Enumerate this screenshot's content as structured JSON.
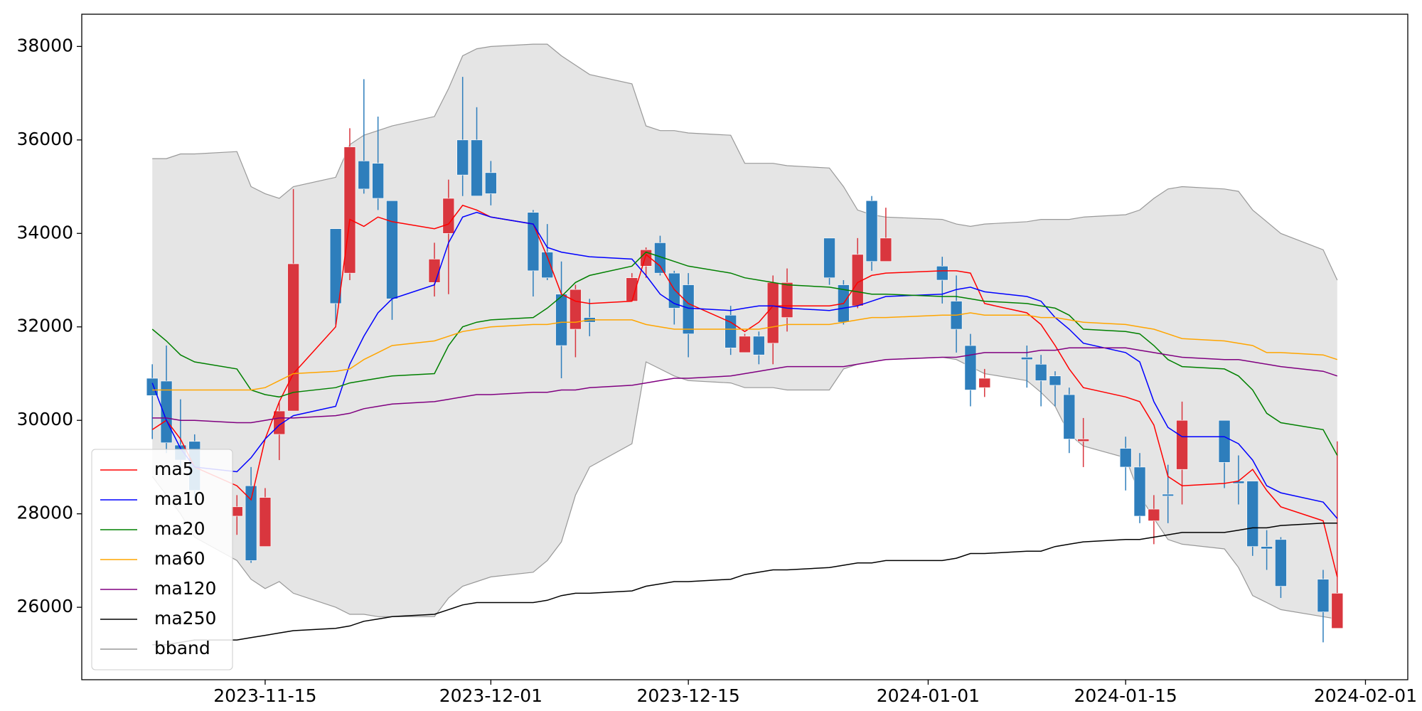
{
  "chart_data": {
    "type": "candlestick",
    "x": [
      "2023-11-07",
      "2023-11-08",
      "2023-11-09",
      "2023-11-10",
      "2023-11-13",
      "2023-11-14",
      "2023-11-15",
      "2023-11-16",
      "2023-11-17",
      "2023-11-20",
      "2023-11-21",
      "2023-11-22",
      "2023-11-23",
      "2023-11-24",
      "2023-11-27",
      "2023-11-28",
      "2023-11-29",
      "2023-11-30",
      "2023-12-01",
      "2023-12-04",
      "2023-12-05",
      "2023-12-06",
      "2023-12-07",
      "2023-12-08",
      "2023-12-11",
      "2023-12-12",
      "2023-12-13",
      "2023-12-14",
      "2023-12-15",
      "2023-12-18",
      "2023-12-19",
      "2023-12-20",
      "2023-12-21",
      "2023-12-22",
      "2023-12-25",
      "2023-12-26",
      "2023-12-27",
      "2023-12-28",
      "2023-12-29",
      "2024-01-02",
      "2024-01-03",
      "2024-01-04",
      "2024-01-05",
      "2024-01-08",
      "2024-01-09",
      "2024-01-10",
      "2024-01-11",
      "2024-01-12",
      "2024-01-15",
      "2024-01-16",
      "2024-01-17",
      "2024-01-18",
      "2024-01-19",
      "2024-01-22",
      "2024-01-23",
      "2024-01-24",
      "2024-01-25",
      "2024-01-26",
      "2024-01-29",
      "2024-01-30"
    ],
    "open": [
      30900,
      30840,
      29470,
      29550,
      27950,
      28600,
      27300,
      29700,
      30200,
      34100,
      33150,
      35550,
      35500,
      34700,
      32950,
      34000,
      36000,
      36000,
      35300,
      34450,
      33600,
      32700,
      31950,
      32200,
      32550,
      33300,
      33800,
      33150,
      32900,
      32250,
      31450,
      31800,
      31650,
      32200,
      33900,
      32900,
      32450,
      34700,
      33400,
      33300,
      32550,
      31600,
      30700,
      31350,
      31200,
      30950,
      30550,
      29550,
      29400,
      29000,
      27850,
      28420,
      28950,
      30000,
      28700,
      28700,
      27300,
      27450,
      26600,
      25550
    ],
    "high": [
      31200,
      31600,
      30450,
      29700,
      28400,
      29000,
      28550,
      30400,
      34950,
      34100,
      36250,
      37300,
      36500,
      34700,
      33800,
      35150,
      37350,
      36700,
      35550,
      34500,
      34200,
      33400,
      32900,
      32600,
      33150,
      33700,
      33950,
      33200,
      33150,
      32450,
      31850,
      31900,
      33100,
      33250,
      33900,
      33000,
      33900,
      34800,
      34550,
      33500,
      33100,
      31850,
      31100,
      31600,
      31400,
      31050,
      30700,
      30050,
      29650,
      29300,
      28400,
      29050,
      30400,
      30000,
      29250,
      28700,
      27650,
      27500,
      26800,
      29550
    ],
    "low": [
      29600,
      29300,
      28900,
      28300,
      27550,
      26950,
      27300,
      29150,
      30200,
      32050,
      33000,
      34850,
      34500,
      32150,
      32650,
      32700,
      34800,
      34800,
      34600,
      32650,
      33000,
      30900,
      31350,
      31800,
      32550,
      33050,
      33100,
      32050,
      31350,
      31400,
      31450,
      31200,
      31200,
      31900,
      32900,
      32050,
      32400,
      33200,
      33400,
      32500,
      31450,
      30300,
      30500,
      30700,
      30300,
      30300,
      29300,
      29000,
      28500,
      27800,
      27350,
      27800,
      28200,
      28550,
      28200,
      27100,
      26800,
      26200,
      25250,
      25550
    ],
    "close": [
      30530,
      29520,
      29150,
      28500,
      28150,
      27000,
      28350,
      30200,
      33350,
      32500,
      35850,
      34950,
      34750,
      32600,
      33450,
      34750,
      35250,
      34800,
      34850,
      33200,
      33050,
      31600,
      32800,
      32100,
      33050,
      33650,
      33150,
      32400,
      31850,
      31550,
      31800,
      31400,
      32950,
      32950,
      33050,
      32100,
      33550,
      33400,
      33900,
      33000,
      31950,
      30650,
      30900,
      31300,
      30850,
      30750,
      29600,
      29600,
      29000,
      27950,
      28100,
      28380,
      30000,
      29100,
      28650,
      27300,
      27250,
      26450,
      25900,
      26300
    ],
    "up_color": "#d9363e",
    "down_color": "#2e7ebc",
    "series": [
      {
        "name": "ma5",
        "color": "#ff0000",
        "values": [
          29800,
          30000,
          29600,
          29000,
          28600,
          28300,
          29600,
          30400,
          31000,
          32000,
          34300,
          34150,
          34350,
          34250,
          34100,
          34200,
          34600,
          34500,
          34350,
          34200,
          33500,
          32700,
          32550,
          32500,
          32550,
          33550,
          33300,
          32800,
          32500,
          32100,
          31900,
          32100,
          32450,
          32450,
          32450,
          32500,
          32950,
          33100,
          33150,
          33200,
          33200,
          33150,
          32500,
          32300,
          32050,
          31600,
          31100,
          30700,
          30500,
          30400,
          29900,
          28800,
          28600,
          28650,
          28700,
          28950,
          28500,
          28150,
          27850,
          26650
        ]
      },
      {
        "name": "ma10",
        "color": "#0000ff",
        "values": [
          30800,
          30000,
          29400,
          29000,
          28900,
          29200,
          29600,
          29900,
          30100,
          30300,
          31200,
          31800,
          32300,
          32600,
          32900,
          33800,
          34350,
          34450,
          34350,
          34200,
          33700,
          33600,
          33550,
          33500,
          33450,
          33100,
          32700,
          32500,
          32400,
          32350,
          32400,
          32450,
          32450,
          32400,
          32350,
          32400,
          32450,
          32550,
          32650,
          32700,
          32800,
          32850,
          32750,
          32650,
          32550,
          32200,
          31950,
          31650,
          31450,
          31250,
          30400,
          29850,
          29650,
          29650,
          29500,
          29150,
          28600,
          28450,
          28250,
          27900
        ]
      },
      {
        "name": "ma20",
        "color": "#008000",
        "values": [
          31950,
          31700,
          31400,
          31250,
          31100,
          30650,
          30550,
          30500,
          30600,
          30700,
          30800,
          30850,
          30900,
          30950,
          31000,
          31600,
          32000,
          32100,
          32150,
          32200,
          32400,
          32650,
          32950,
          33100,
          33300,
          33600,
          33500,
          33400,
          33300,
          33150,
          33050,
          33000,
          32950,
          32900,
          32850,
          32800,
          32750,
          32700,
          32700,
          32650,
          32650,
          32600,
          32550,
          32500,
          32450,
          32400,
          32250,
          31950,
          31900,
          31850,
          31600,
          31300,
          31150,
          31100,
          30950,
          30650,
          30150,
          29950,
          29800,
          29250
        ]
      },
      {
        "name": "ma60",
        "color": "#ffa500",
        "values": [
          30650,
          30650,
          30650,
          30650,
          30650,
          30650,
          30700,
          30850,
          31000,
          31050,
          31100,
          31300,
          31450,
          31600,
          31700,
          31800,
          31900,
          31950,
          32000,
          32050,
          32050,
          32100,
          32100,
          32150,
          32150,
          32050,
          32000,
          31950,
          31950,
          31950,
          31950,
          31950,
          32000,
          32050,
          32050,
          32100,
          32150,
          32200,
          32200,
          32250,
          32250,
          32300,
          32250,
          32250,
          32200,
          32200,
          32150,
          32100,
          32050,
          32000,
          31950,
          31850,
          31750,
          31700,
          31650,
          31600,
          31450,
          31450,
          31400,
          31300
        ]
      },
      {
        "name": "ma120",
        "color": "#800080",
        "values": [
          30050,
          30050,
          30000,
          30000,
          29950,
          29950,
          30000,
          30050,
          30050,
          30100,
          30150,
          30250,
          30300,
          30350,
          30400,
          30450,
          30500,
          30550,
          30550,
          30600,
          30600,
          30650,
          30650,
          30700,
          30750,
          30800,
          30850,
          30900,
          30900,
          30950,
          31000,
          31050,
          31100,
          31150,
          31150,
          31150,
          31200,
          31250,
          31300,
          31350,
          31350,
          31400,
          31450,
          31450,
          31500,
          31500,
          31550,
          31550,
          31550,
          31500,
          31450,
          31400,
          31350,
          31300,
          31300,
          31250,
          31200,
          31150,
          31050,
          30950
        ]
      },
      {
        "name": "ma250",
        "color": "#000000",
        "values": [
          25200,
          25200,
          25250,
          25300,
          25300,
          25350,
          25400,
          25450,
          25500,
          25550,
          25600,
          25700,
          25750,
          25800,
          25850,
          25950,
          26050,
          26100,
          26100,
          26100,
          26150,
          26250,
          26300,
          26300,
          26350,
          26450,
          26500,
          26550,
          26550,
          26600,
          26700,
          26750,
          26800,
          26800,
          26850,
          26900,
          26950,
          26950,
          27000,
          27000,
          27050,
          27150,
          27150,
          27200,
          27200,
          27300,
          27350,
          27400,
          27450,
          27450,
          27500,
          27550,
          27600,
          27600,
          27650,
          27700,
          27700,
          27750,
          27800,
          27800
        ]
      }
    ],
    "bband": {
      "name": "bband",
      "color": "#999999",
      "fill": "#e5e5e5",
      "upper": [
        35600,
        35600,
        35700,
        35700,
        35750,
        35000,
        34850,
        34750,
        35000,
        35200,
        35900,
        36100,
        36200,
        36300,
        36500,
        37100,
        37800,
        37950,
        38000,
        38050,
        38050,
        37800,
        37600,
        37400,
        37200,
        36300,
        36200,
        36200,
        36150,
        36100,
        35500,
        35500,
        35500,
        35450,
        35400,
        35000,
        34500,
        34400,
        34350,
        34300,
        34200,
        34150,
        34200,
        34250,
        34300,
        34300,
        34300,
        34350,
        34400,
        34500,
        34750,
        34950,
        35000,
        34950,
        34900,
        34500,
        34250,
        34000,
        33650,
        33000
      ],
      "lower": [
        28800,
        28400,
        28000,
        27500,
        27000,
        26600,
        26400,
        26550,
        26300,
        26000,
        25850,
        25850,
        25800,
        25800,
        25800,
        26200,
        26450,
        26550,
        26650,
        26750,
        27000,
        27400,
        28400,
        29000,
        29500,
        31250,
        31100,
        30950,
        30850,
        30800,
        30700,
        30700,
        30700,
        30650,
        30650,
        31100,
        31200,
        31250,
        31300,
        31350,
        31300,
        31150,
        31000,
        30850,
        30600,
        30300,
        29700,
        29450,
        29200,
        28400,
        27900,
        27450,
        27350,
        27250,
        26850,
        26250,
        26100,
        25950,
        25800,
        25750
      ]
    },
    "xlim": [
      "2023-11-02",
      "2024-02-04"
    ],
    "xticks": [
      "2023-11-15",
      "2023-12-01",
      "2023-12-15",
      "2024-01-01",
      "2024-01-15",
      "2024-02-01"
    ],
    "ylim": [
      24450,
      38690
    ],
    "yticks": [
      26000,
      28000,
      30000,
      32000,
      34000,
      36000,
      38000
    ],
    "legend": "lower left"
  }
}
